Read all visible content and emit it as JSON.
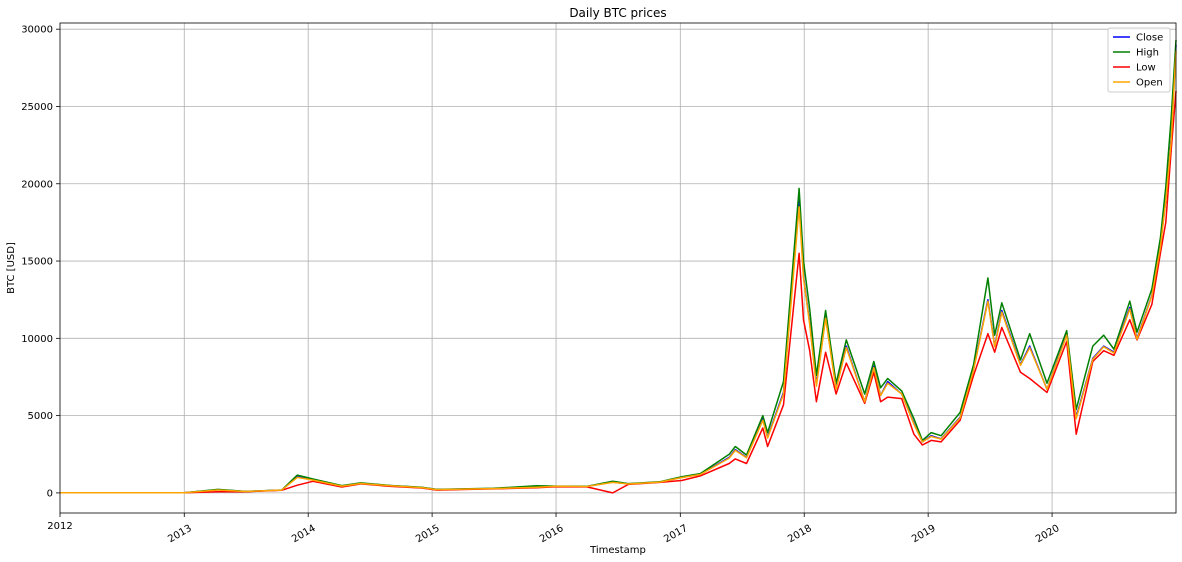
{
  "chart_data": {
    "type": "line",
    "title": "Daily BTC prices",
    "xlabel": "Timestamp",
    "ylabel": "BTC [USD]",
    "xlim": [
      "2012-01-01",
      "2020-12-31"
    ],
    "ylim": [
      -1300,
      30400
    ],
    "grid": true,
    "legend_position": "top-right",
    "x_ticks": [
      "2012",
      "2013",
      "2014",
      "2015",
      "2016",
      "2017",
      "2018",
      "2019",
      "2020"
    ],
    "y_ticks": [
      0,
      5000,
      10000,
      15000,
      20000,
      25000,
      30000
    ],
    "x": [
      "2012-01-01",
      "2013-01-01",
      "2013-04-10",
      "2013-07-01",
      "2013-10-15",
      "2013-11-30",
      "2014-01-15",
      "2014-04-10",
      "2014-06-05",
      "2014-09-01",
      "2014-12-01",
      "2015-01-15",
      "2015-04-01",
      "2015-07-01",
      "2015-11-05",
      "2016-01-01",
      "2016-04-01",
      "2016-06-16",
      "2016-08-01",
      "2016-11-01",
      "2017-01-05",
      "2017-03-01",
      "2017-05-25",
      "2017-06-12",
      "2017-07-15",
      "2017-09-01",
      "2017-09-15",
      "2017-11-01",
      "2017-12-17",
      "2017-12-30",
      "2018-01-17",
      "2018-02-06",
      "2018-03-05",
      "2018-04-05",
      "2018-05-05",
      "2018-06-28",
      "2018-07-25",
      "2018-08-14",
      "2018-09-04",
      "2018-10-15",
      "2018-11-20",
      "2018-12-15",
      "2019-01-10",
      "2019-02-08",
      "2019-04-05",
      "2019-05-15",
      "2019-06-26",
      "2019-07-16",
      "2019-08-06",
      "2019-09-30",
      "2019-10-27",
      "2019-12-17",
      "2020-02-13",
      "2020-03-12",
      "2020-04-30",
      "2020-06-01",
      "2020-07-01",
      "2020-08-17",
      "2020-09-07",
      "2020-10-21",
      "2020-11-15",
      "2020-12-01",
      "2020-12-17",
      "2020-12-31"
    ],
    "series": [
      {
        "name": "Close",
        "color": "#0000ff",
        "values": [
          5,
          13,
          200,
          90,
          180,
          1050,
          850,
          450,
          620,
          470,
          350,
          220,
          250,
          280,
          380,
          430,
          420,
          700,
          580,
          700,
          1000,
          1200,
          2300,
          2800,
          2300,
          4800,
          3600,
          6500,
          19000,
          14000,
          11000,
          7000,
          11400,
          6800,
          9500,
          5900,
          8200,
          6300,
          7200,
          6400,
          4500,
          3300,
          3700,
          3500,
          4900,
          8000,
          12500,
          9500,
          11800,
          8300,
          9500,
          6700,
          10300,
          4900,
          8700,
          9500,
          9100,
          12000,
          10000,
          12800,
          16000,
          19000,
          23000,
          29000
        ]
      },
      {
        "name": "High",
        "color": "#008000",
        "values": [
          6,
          14,
          230,
          100,
          190,
          1150,
          900,
          470,
          650,
          480,
          360,
          230,
          260,
          300,
          460,
          440,
          430,
          760,
          600,
          720,
          1050,
          1250,
          2500,
          3000,
          2450,
          5000,
          3900,
          7200,
          19700,
          15000,
          11900,
          7600,
          11800,
          7100,
          9900,
          6400,
          8500,
          6800,
          7400,
          6600,
          4800,
          3400,
          3900,
          3700,
          5200,
          8300,
          13900,
          10200,
          12300,
          8600,
          10300,
          7100,
          10500,
          5400,
          9500,
          10200,
          9300,
          12400,
          10400,
          13200,
          16500,
          19800,
          24300,
          29300
        ]
      },
      {
        "name": "Low",
        "color": "#ff0000",
        "values": [
          4,
          12,
          70,
          80,
          170,
          500,
          750,
          380,
          580,
          420,
          320,
          180,
          220,
          260,
          330,
          400,
          390,
          2,
          550,
          680,
          800,
          1100,
          1900,
          2200,
          1900,
          4200,
          3000,
          5700,
          15500,
          11200,
          9200,
          5900,
          9100,
          6400,
          8400,
          5800,
          7800,
          5900,
          6200,
          6100,
          3800,
          3100,
          3400,
          3300,
          4700,
          7600,
          10300,
          9100,
          10700,
          7800,
          7400,
          6500,
          9800,
          3800,
          8500,
          9200,
          8900,
          11200,
          9900,
          12200,
          15500,
          17500,
          22200,
          26000
        ]
      },
      {
        "name": "Open",
        "color": "#ffa500",
        "values": [
          5,
          13,
          190,
          90,
          180,
          1000,
          830,
          440,
          610,
          460,
          345,
          215,
          248,
          280,
          370,
          430,
          415,
          680,
          575,
          700,
          990,
          1190,
          2250,
          2750,
          2270,
          4700,
          3550,
          6400,
          18500,
          13900,
          10900,
          6900,
          11300,
          6700,
          9400,
          5900,
          8100,
          6300,
          7100,
          6400,
          4450,
          3300,
          3650,
          3480,
          4850,
          7950,
          12400,
          9450,
          11700,
          8250,
          9400,
          6700,
          10200,
          4800,
          8650,
          9450,
          9050,
          11900,
          9950,
          12750,
          15900,
          18900,
          22800,
          28600
        ]
      }
    ]
  }
}
